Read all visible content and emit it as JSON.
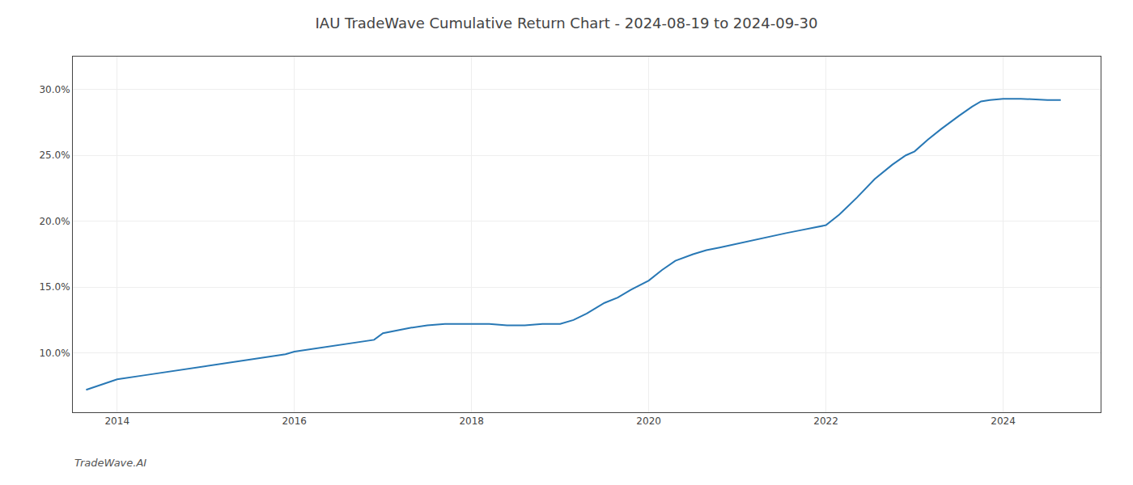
{
  "chart_data": {
    "type": "line",
    "title": "IAU TradeWave Cumulative Return Chart - 2024-08-19 to 2024-09-30",
    "annotations": [
      "TradeWave.AI"
    ],
    "color": "#2878b5",
    "grid": true,
    "xlim": [
      2013.5,
      2025.1
    ],
    "ylim": [
      0.055,
      0.325
    ],
    "xticks": [
      2014,
      2016,
      2018,
      2020,
      2022,
      2024
    ],
    "yticks": [
      {
        "value": 0.1,
        "label": "10.0%"
      },
      {
        "value": 0.15,
        "label": "15.0%"
      },
      {
        "value": 0.2,
        "label": "20.0%"
      },
      {
        "value": 0.25,
        "label": "25.0%"
      },
      {
        "value": 0.3,
        "label": "30.0%"
      }
    ],
    "x": [
      2013.65,
      2014.0,
      2014.3,
      2014.7,
      2015.0,
      2015.3,
      2015.6,
      2015.9,
      2016.0,
      2016.3,
      2016.6,
      2016.9,
      2017.0,
      2017.3,
      2017.5,
      2017.7,
      2017.85,
      2017.95,
      2018.0,
      2018.1,
      2018.2,
      2018.4,
      2018.6,
      2018.8,
      2019.0,
      2019.15,
      2019.3,
      2019.5,
      2019.65,
      2019.8,
      2020.0,
      2020.15,
      2020.3,
      2020.5,
      2020.65,
      2020.8,
      2021.0,
      2021.2,
      2021.4,
      2021.55,
      2021.7,
      2021.85,
      2022.0,
      2022.15,
      2022.35,
      2022.55,
      2022.75,
      2022.9,
      2023.0,
      2023.15,
      2023.3,
      2023.5,
      2023.65,
      2023.75,
      2023.85,
      2024.0,
      2024.2,
      2024.5,
      2024.65
    ],
    "values": [
      0.072,
      0.08,
      0.083,
      0.087,
      0.09,
      0.093,
      0.096,
      0.099,
      0.101,
      0.104,
      0.107,
      0.11,
      0.115,
      0.119,
      0.121,
      0.122,
      0.122,
      0.122,
      0.122,
      0.122,
      0.122,
      0.121,
      0.121,
      0.122,
      0.122,
      0.125,
      0.13,
      0.138,
      0.142,
      0.148,
      0.155,
      0.163,
      0.17,
      0.175,
      0.178,
      0.18,
      0.183,
      0.186,
      0.189,
      0.191,
      0.193,
      0.195,
      0.197,
      0.205,
      0.218,
      0.232,
      0.243,
      0.25,
      0.253,
      0.262,
      0.27,
      0.28,
      0.287,
      0.291,
      0.292,
      0.293,
      0.293,
      0.292,
      0.292
    ]
  }
}
